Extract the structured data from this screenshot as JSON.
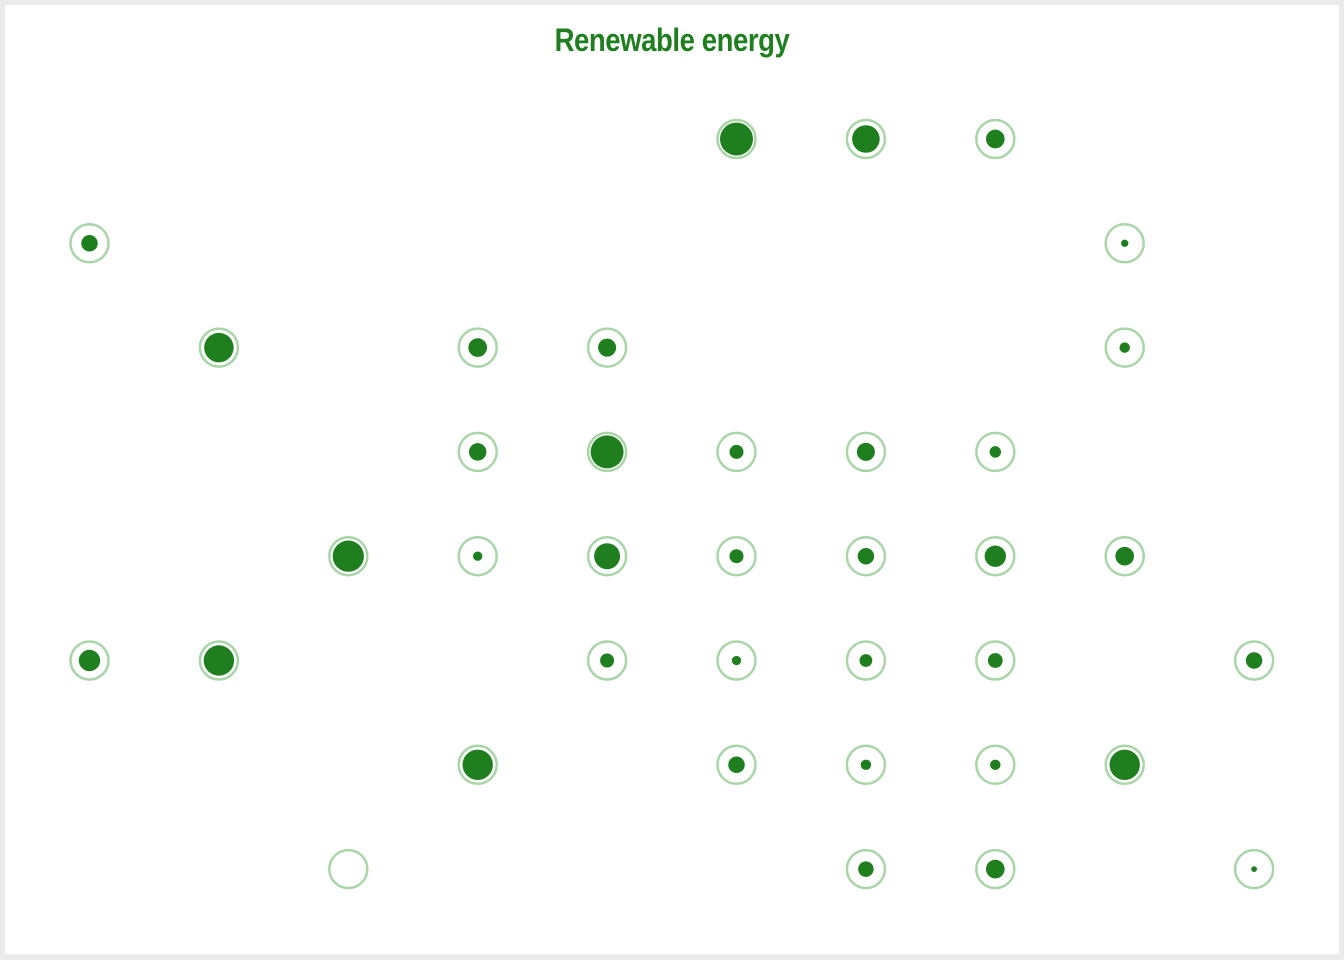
{
  "chart_data": {
    "type": "scatter",
    "title": "Renewable energy",
    "encoding": "tile map: each outline ring is one region; inner filled dot radius encodes the value (0-1)",
    "colors": {
      "ring": "#a9d5a9",
      "dot": "#1f7f1f",
      "title": "#1f7f1f",
      "frame": "#ebebeb",
      "background": "#ffffff"
    },
    "points": [
      {
        "col": 5,
        "row": 0,
        "value": 1.0
      },
      {
        "col": 6,
        "row": 0,
        "value": 0.7
      },
      {
        "col": 7,
        "row": 0,
        "value": 0.32
      },
      {
        "col": 0,
        "row": 1,
        "value": 0.25
      },
      {
        "col": 8,
        "row": 1,
        "value": 0.05
      },
      {
        "col": 1,
        "row": 2,
        "value": 0.8
      },
      {
        "col": 3,
        "row": 2,
        "value": 0.32
      },
      {
        "col": 4,
        "row": 2,
        "value": 0.3
      },
      {
        "col": 8,
        "row": 2,
        "value": 0.1
      },
      {
        "col": 3,
        "row": 3,
        "value": 0.28
      },
      {
        "col": 4,
        "row": 3,
        "value": 1.0
      },
      {
        "col": 5,
        "row": 3,
        "value": 0.18
      },
      {
        "col": 6,
        "row": 3,
        "value": 0.3
      },
      {
        "col": 7,
        "row": 3,
        "value": 0.12
      },
      {
        "col": 2,
        "row": 4,
        "value": 0.9
      },
      {
        "col": 3,
        "row": 4,
        "value": 0.08
      },
      {
        "col": 4,
        "row": 4,
        "value": 0.62
      },
      {
        "col": 5,
        "row": 4,
        "value": 0.18
      },
      {
        "col": 6,
        "row": 4,
        "value": 0.25
      },
      {
        "col": 7,
        "row": 4,
        "value": 0.42
      },
      {
        "col": 8,
        "row": 4,
        "value": 0.32
      },
      {
        "col": 0,
        "row": 5,
        "value": 0.42
      },
      {
        "col": 1,
        "row": 5,
        "value": 0.85
      },
      {
        "col": 4,
        "row": 5,
        "value": 0.18
      },
      {
        "col": 5,
        "row": 5,
        "value": 0.08
      },
      {
        "col": 6,
        "row": 5,
        "value": 0.15
      },
      {
        "col": 7,
        "row": 5,
        "value": 0.2
      },
      {
        "col": 9,
        "row": 5,
        "value": 0.25
      },
      {
        "col": 3,
        "row": 6,
        "value": 0.85
      },
      {
        "col": 5,
        "row": 6,
        "value": 0.25
      },
      {
        "col": 6,
        "row": 6,
        "value": 0.1
      },
      {
        "col": 7,
        "row": 6,
        "value": 0.1
      },
      {
        "col": 8,
        "row": 6,
        "value": 0.85
      },
      {
        "col": 2,
        "row": 7,
        "value": 0.0
      },
      {
        "col": 6,
        "row": 7,
        "value": 0.22
      },
      {
        "col": 7,
        "row": 7,
        "value": 0.32
      },
      {
        "col": 9,
        "row": 7,
        "value": 0.03
      }
    ]
  }
}
